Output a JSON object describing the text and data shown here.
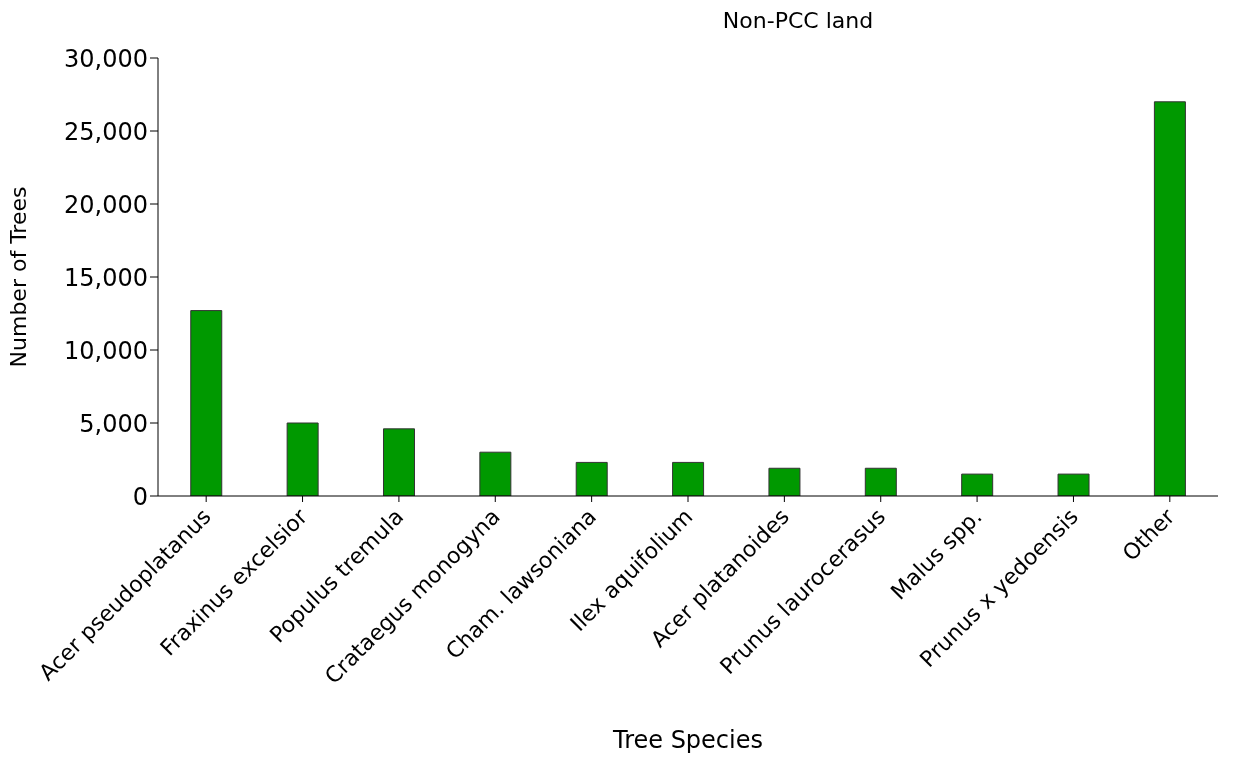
{
  "chart_data": {
    "type": "bar",
    "title": "Non-PCC land",
    "xlabel": "Tree Species",
    "ylabel": "Number of Trees",
    "categories": [
      "Acer pseudoplatanus",
      "Fraxinus excelsior",
      "Populus tremula",
      "Crataegus monogyna",
      "Cham. lawsoniana",
      "Ilex aquifolium",
      "Acer platanoides",
      "Prunus laurocerasus",
      "Malus spp.",
      "Prunus x yedoensis",
      "Other"
    ],
    "values": [
      12700,
      5000,
      4600,
      3000,
      2300,
      2300,
      1900,
      1900,
      1500,
      1500,
      27000
    ],
    "color": "#009900",
    "ylim": [
      0,
      30000
    ],
    "yticks": [
      {
        "value": 0,
        "label": "0"
      },
      {
        "value": 5000,
        "label": "5,000"
      },
      {
        "value": 10000,
        "label": "10,000"
      },
      {
        "value": 15000,
        "label": "15,000"
      },
      {
        "value": 20000,
        "label": "20,000"
      },
      {
        "value": 25000,
        "label": "25,000"
      },
      {
        "value": 30000,
        "label": "30,000"
      }
    ],
    "grid": false,
    "legend": false
  }
}
